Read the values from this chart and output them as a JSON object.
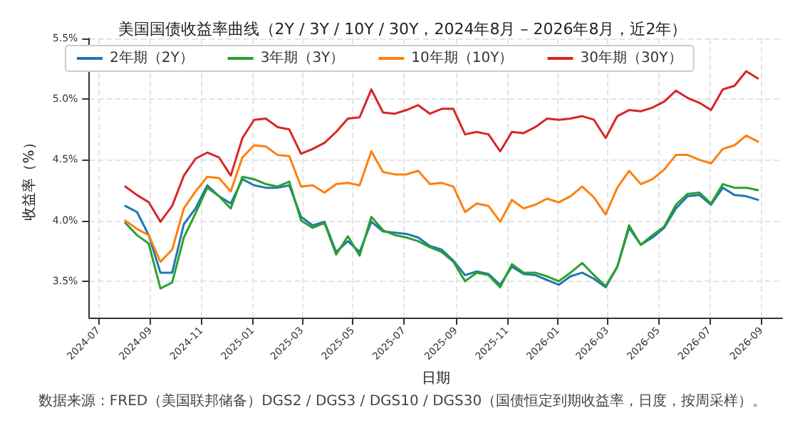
{
  "chart_data": {
    "type": "line",
    "title": "美国国债收益率曲线（2Y / 3Y / 10Y / 30Y，2024年8月 – 2026年8月，近2年）",
    "xlabel": "日期",
    "ylabel": "收益率（%）",
    "annotations": [
      "数据来源：FRED（美国联邦储备）DGS2 / DGS3 / DGS10 / DGS30（国债恒定到期收益率，日度，按周采样）。"
    ],
    "x": [
      "2024-08-02",
      "2024-08-16",
      "2024-08-30",
      "2024-09-13",
      "2024-09-27",
      "2024-10-11",
      "2024-10-25",
      "2024-11-08",
      "2024-11-22",
      "2024-12-06",
      "2024-12-20",
      "2025-01-03",
      "2025-01-17",
      "2025-01-31",
      "2025-02-14",
      "2025-02-28",
      "2025-03-14",
      "2025-03-28",
      "2025-04-11",
      "2025-04-25",
      "2025-05-09",
      "2025-05-23",
      "2025-06-06",
      "2025-06-20",
      "2025-07-04",
      "2025-07-18",
      "2025-08-01",
      "2025-08-15",
      "2025-08-29",
      "2025-09-12",
      "2025-09-26",
      "2025-10-10",
      "2025-10-24",
      "2025-11-07",
      "2025-11-21",
      "2025-12-05",
      "2025-12-19",
      "2026-01-02",
      "2026-01-16",
      "2026-01-30",
      "2026-02-13",
      "2026-02-27",
      "2026-03-13",
      "2026-03-27",
      "2026-04-10",
      "2026-04-24",
      "2026-05-08",
      "2026-05-22",
      "2026-06-05",
      "2026-06-19",
      "2026-07-03",
      "2026-07-17",
      "2026-07-31",
      "2026-08-14",
      "2026-08-28"
    ],
    "series": [
      {
        "name": "2年期（2Y）",
        "color": "#1f77b4",
        "values": [
          4.12,
          4.07,
          3.88,
          3.57,
          3.57,
          3.97,
          4.1,
          4.29,
          4.2,
          4.14,
          4.34,
          4.29,
          4.27,
          4.27,
          4.29,
          4.03,
          3.96,
          3.99,
          3.74,
          3.83,
          3.74,
          3.99,
          3.91,
          3.9,
          3.89,
          3.86,
          3.79,
          3.76,
          3.67,
          3.55,
          3.58,
          3.56,
          3.47,
          3.62,
          3.56,
          3.55,
          3.51,
          3.47,
          3.54,
          3.57,
          3.52,
          3.45,
          3.62,
          3.94,
          3.8,
          3.86,
          3.94,
          4.1,
          4.2,
          4.21,
          4.13,
          4.27,
          4.21,
          4.2,
          4.17
        ]
      },
      {
        "name": "3年期（3Y）",
        "color": "#2ca02c",
        "values": [
          3.98,
          3.88,
          3.81,
          3.44,
          3.49,
          3.86,
          4.06,
          4.27,
          4.2,
          4.1,
          4.36,
          4.34,
          4.3,
          4.28,
          4.32,
          4.0,
          3.94,
          3.98,
          3.72,
          3.87,
          3.71,
          4.03,
          3.92,
          3.88,
          3.86,
          3.83,
          3.78,
          3.74,
          3.66,
          3.5,
          3.57,
          3.55,
          3.45,
          3.64,
          3.57,
          3.57,
          3.54,
          3.5,
          3.57,
          3.65,
          3.55,
          3.46,
          3.62,
          3.96,
          3.8,
          3.88,
          3.95,
          4.13,
          4.22,
          4.23,
          4.14,
          4.3,
          4.27,
          4.27,
          4.25
        ]
      },
      {
        "name": "10年期（10Y）",
        "color": "#ff7f0e",
        "values": [
          4.0,
          3.93,
          3.88,
          3.66,
          3.76,
          4.1,
          4.24,
          4.36,
          4.35,
          4.24,
          4.52,
          4.62,
          4.61,
          4.54,
          4.53,
          4.28,
          4.29,
          4.23,
          4.3,
          4.31,
          4.29,
          4.57,
          4.4,
          4.38,
          4.38,
          4.41,
          4.3,
          4.31,
          4.28,
          4.07,
          4.14,
          4.12,
          3.99,
          4.17,
          4.1,
          4.13,
          4.18,
          4.15,
          4.2,
          4.28,
          4.19,
          4.05,
          4.27,
          4.41,
          4.3,
          4.34,
          4.42,
          4.54,
          4.54,
          4.5,
          4.47,
          4.59,
          4.62,
          4.7,
          4.65
        ]
      },
      {
        "name": "30年期（30Y）",
        "color": "#d62728",
        "values": [
          4.28,
          4.21,
          4.15,
          3.99,
          4.12,
          4.37,
          4.51,
          4.56,
          4.52,
          4.37,
          4.68,
          4.83,
          4.84,
          4.77,
          4.75,
          4.55,
          4.59,
          4.64,
          4.73,
          4.84,
          4.85,
          5.08,
          4.89,
          4.88,
          4.91,
          4.95,
          4.88,
          4.92,
          4.92,
          4.71,
          4.73,
          4.71,
          4.57,
          4.73,
          4.72,
          4.77,
          4.84,
          4.83,
          4.84,
          4.86,
          4.83,
          4.68,
          4.86,
          4.91,
          4.9,
          4.93,
          4.98,
          5.07,
          5.01,
          4.97,
          4.91,
          5.08,
          5.11,
          5.23,
          5.17
        ]
      }
    ],
    "xlim": [
      "2024-06-20",
      "2026-09-26"
    ],
    "xticks": [
      "2024-07",
      "2024-09",
      "2024-11",
      "2025-01",
      "2025-03",
      "2025-05",
      "2025-07",
      "2025-09",
      "2025-11",
      "2026-01",
      "2026-03",
      "2026-05",
      "2026-07",
      "2026-09"
    ],
    "ylim": [
      3.2,
      5.5
    ],
    "yticks": [
      {
        "value": 3.5,
        "label": "3.5%"
      },
      {
        "value": 4.0,
        "label": "4.0%"
      },
      {
        "value": 4.5,
        "label": "4.5%"
      },
      {
        "value": 5.0,
        "label": "5.0%"
      },
      {
        "value": 5.5,
        "label": "5.5%"
      }
    ],
    "grid": true,
    "legend": "top left",
    "marker": "none",
    "line_style": "solid"
  }
}
